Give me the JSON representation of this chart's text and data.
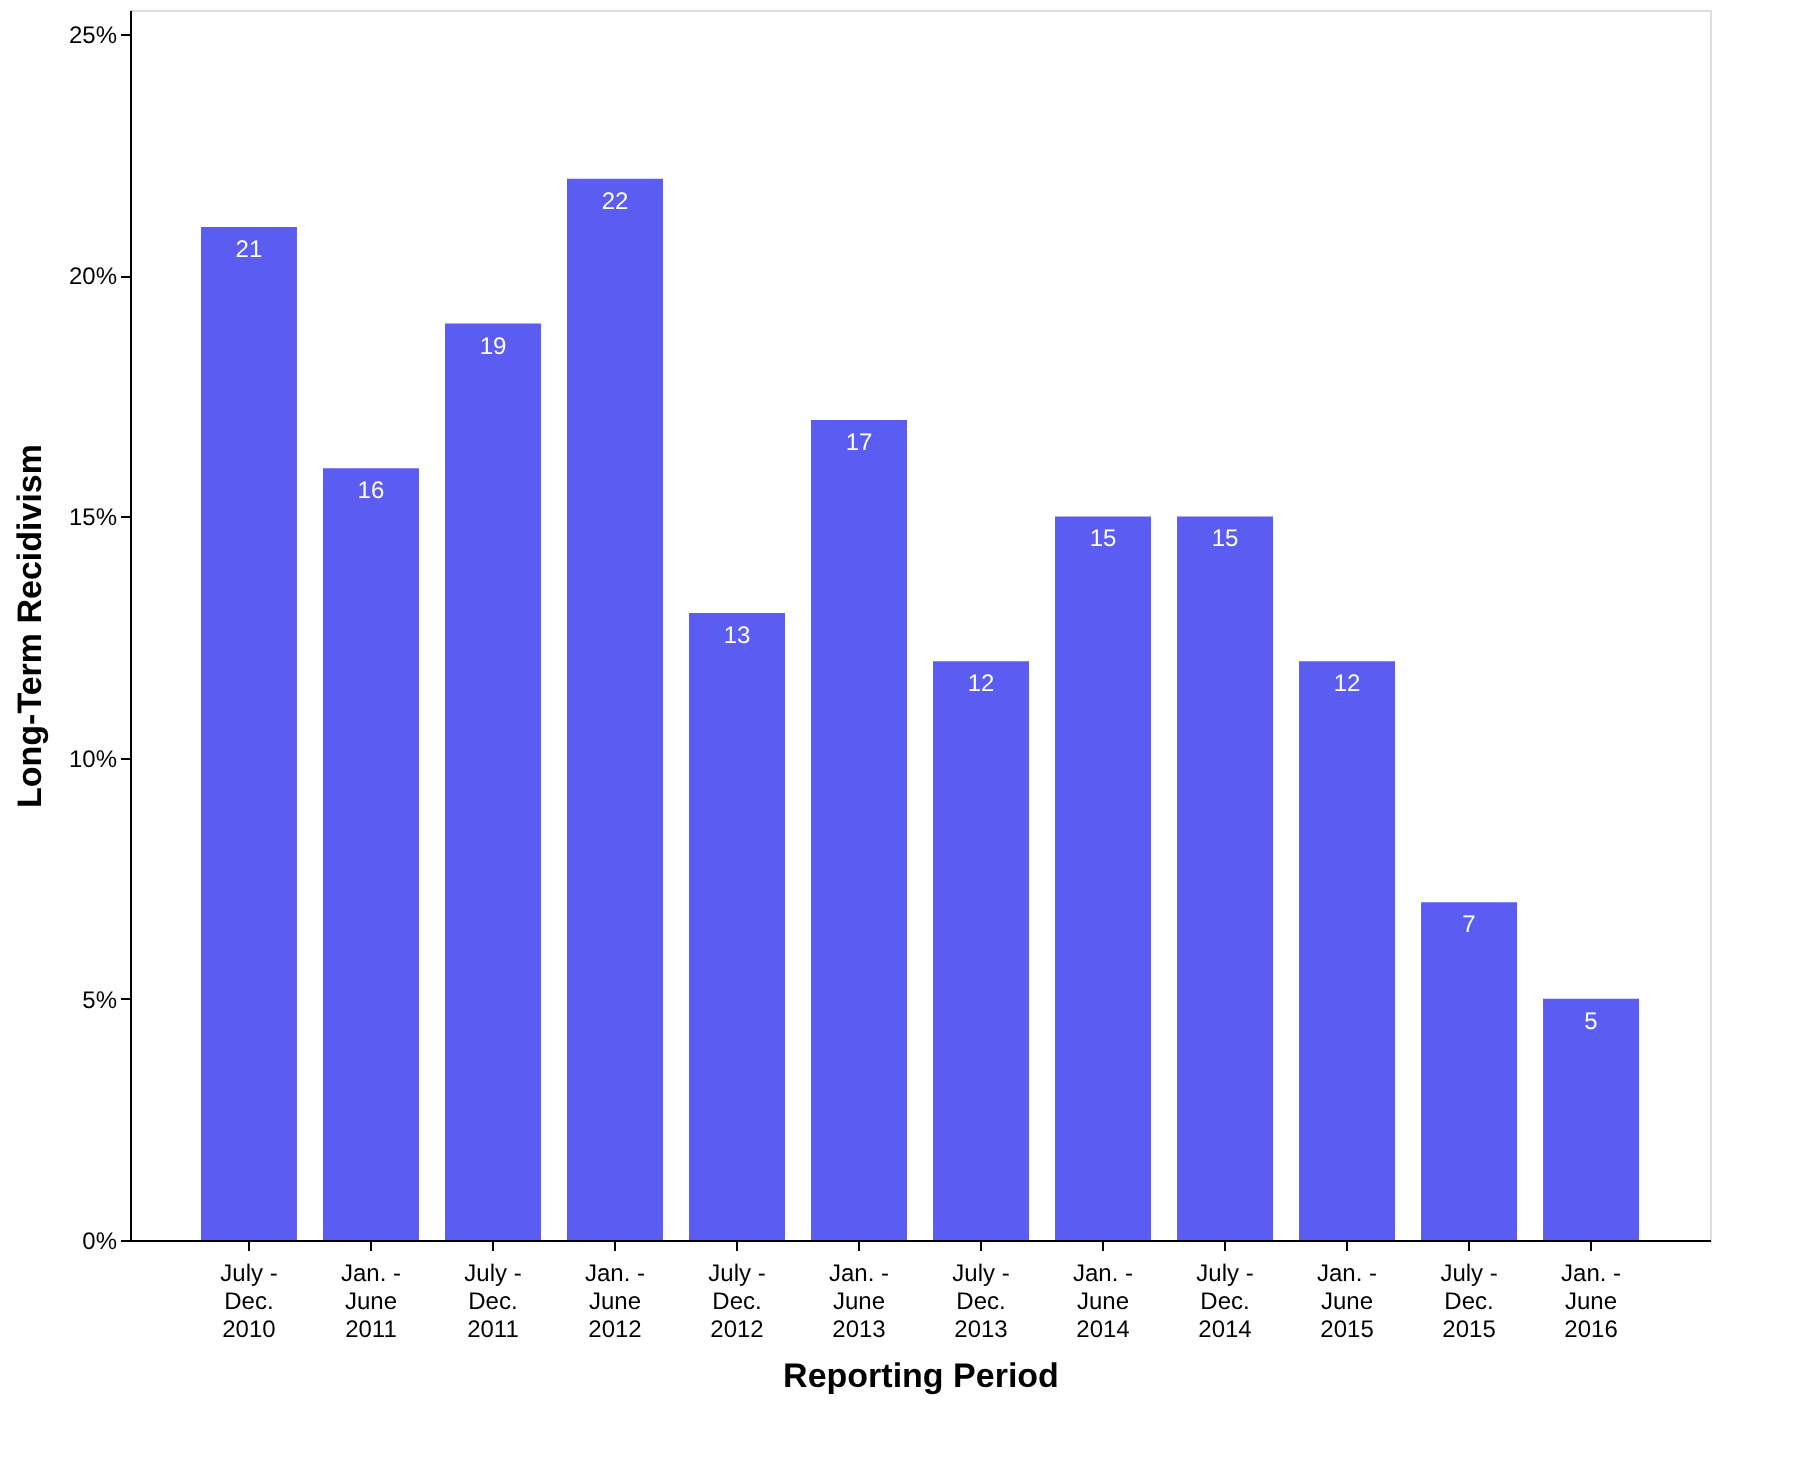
{
  "chart_data": {
    "type": "bar",
    "xlabel": "Reporting Period",
    "ylabel": "Long-Term Recidivism",
    "categories": [
      "July -\nDec.\n2010",
      "Jan. -\nJune\n2011",
      "July -\nDec.\n2011",
      "Jan. -\nJune\n2012",
      "July -\nDec.\n2012",
      "Jan. -\nJune\n2013",
      "July -\nDec.\n2013",
      "Jan. -\nJune\n2014",
      "July -\nDec.\n2014",
      "Jan. -\nJune\n2015",
      "July -\nDec.\n2015",
      "Jan. -\nJune\n2016"
    ],
    "values": [
      21,
      16,
      19,
      22,
      13,
      17,
      12,
      15,
      15,
      12,
      7,
      5
    ],
    "color": "#5b5cf2",
    "ylim": [
      0,
      25.5
    ],
    "yticks": [
      {
        "value": 0,
        "label": "0%"
      },
      {
        "value": 5,
        "label": "5%"
      },
      {
        "value": 10,
        "label": "10%"
      },
      {
        "value": 15,
        "label": "15%"
      },
      {
        "value": 20,
        "label": "20%"
      },
      {
        "value": 25,
        "label": "25%"
      }
    ],
    "data_labels": true,
    "grid": false
  }
}
